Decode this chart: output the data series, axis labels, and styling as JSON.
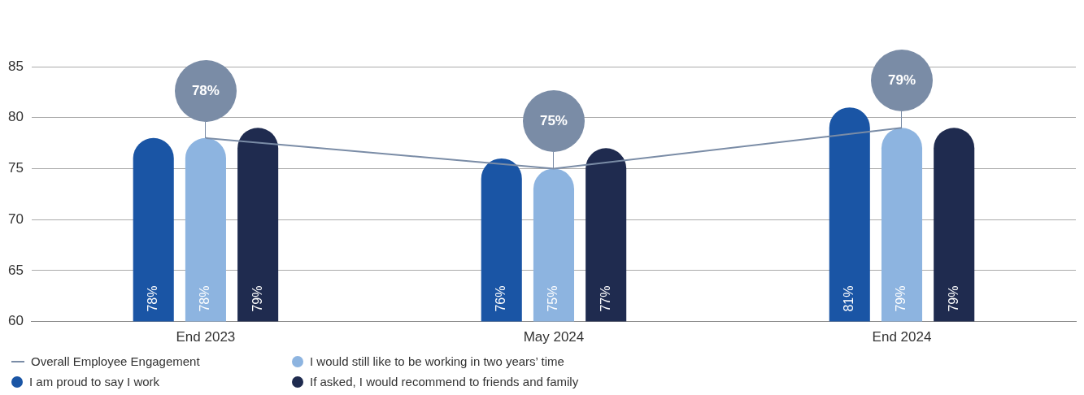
{
  "chart_data": {
    "type": "bar",
    "categories": [
      "End 2023",
      "May 2024",
      "End 2024"
    ],
    "series": [
      {
        "name": "Overall Employee Engagement",
        "type": "line",
        "color": "#7a8ca6",
        "values": [
          78,
          75,
          79
        ],
        "value_labels": [
          "78%",
          "75%",
          "79%"
        ]
      },
      {
        "name": "I am proud to say I work",
        "color": "#1a55a5",
        "values": [
          78,
          76,
          81
        ],
        "value_labels": [
          "78%",
          "76%",
          "81%"
        ]
      },
      {
        "name": "I would still like to be working in two years’ time",
        "color": "#8db4e0",
        "values": [
          78,
          75,
          79
        ],
        "value_labels": [
          "78%",
          "75%",
          "79%"
        ]
      },
      {
        "name": "If asked, I would recommend to friends and family",
        "color": "#1f2b4f",
        "values": [
          79,
          77,
          79
        ],
        "value_labels": [
          "79%",
          "77%",
          "79%"
        ]
      }
    ],
    "ylim": [
      60,
      85
    ],
    "yticks": [
      60,
      65,
      70,
      75,
      80,
      85
    ],
    "grid": "y",
    "legend": "bottom",
    "marker": "none"
  }
}
